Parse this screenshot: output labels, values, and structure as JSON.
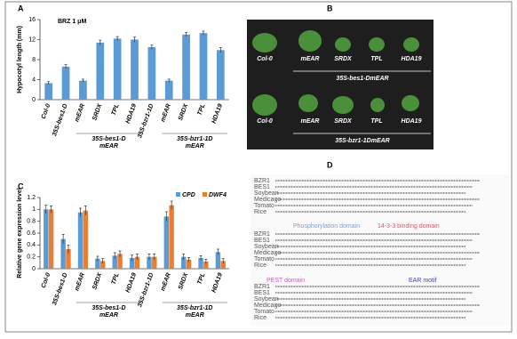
{
  "panel_labels": [
    "A",
    "B",
    "C",
    "D"
  ],
  "chart_data": [
    {
      "type": "bar",
      "title": "BRZ 1 μM",
      "y_label": "Hypocotyl length (mm)",
      "categories": [
        "Col-0",
        "35S-bes1-D",
        "mEAR",
        "SRDX",
        "TPL",
        "HDA19",
        "35S-bzr1-1D",
        "mEAR",
        "SRDX",
        "TPL",
        "HDA19"
      ],
      "values": [
        3.3,
        6.6,
        3.8,
        11.4,
        12.2,
        12.0,
        10.5,
        3.8,
        13.0,
        13.3,
        9.9
      ],
      "errors": [
        0.3,
        0.4,
        0.3,
        0.5,
        0.4,
        0.5,
        0.4,
        0.3,
        0.4,
        0.4,
        0.5
      ],
      "group_labels": [
        [
          "35S-bes1-D",
          "mEAR"
        ],
        [
          "35S-bzr1-1D",
          "mEAR"
        ]
      ],
      "color": "#5b9bd5",
      "ylim": [
        0,
        16
      ],
      "yticks": [
        0,
        4,
        8,
        12,
        16
      ]
    },
    {
      "type": "grouped-bar",
      "y_label": "Relative gene expression level",
      "categories": [
        "Col-0",
        "35S-bes1-D",
        "mEAR",
        "SRDX",
        "TPL",
        "HDA19",
        "35S-bzr1-1D",
        "mEAR",
        "SRDX",
        "TPL",
        "HDA19"
      ],
      "series": [
        {
          "name": "CPD",
          "color": "#5b9bd5",
          "values": [
            1.0,
            0.5,
            0.95,
            0.17,
            0.22,
            0.18,
            0.2,
            0.88,
            0.2,
            0.18,
            0.28
          ],
          "errors": [
            0.07,
            0.08,
            0.07,
            0.04,
            0.05,
            0.05,
            0.05,
            0.08,
            0.05,
            0.04,
            0.05
          ]
        },
        {
          "name": "DWF4",
          "color": "#ed7d31",
          "values": [
            1.0,
            0.33,
            0.98,
            0.13,
            0.25,
            0.2,
            0.2,
            1.07,
            0.15,
            0.12,
            0.13
          ],
          "errors": [
            0.06,
            0.07,
            0.08,
            0.04,
            0.05,
            0.05,
            0.05,
            0.07,
            0.04,
            0.04,
            0.04
          ]
        }
      ],
      "group_labels": [
        [
          "35S-bes1-D",
          "mEAR"
        ],
        [
          "35S-bzr1-1D",
          "mEAR"
        ]
      ],
      "ylim": [
        0,
        1.2
      ],
      "yticks": [
        0,
        0.2,
        0.4,
        0.6,
        0.8,
        1,
        1.2
      ]
    }
  ],
  "photo": {
    "rows": [
      {
        "labels": [
          "Col-0",
          "mEAR",
          "SRDX",
          "TPL",
          "HDA19"
        ],
        "caption": "35S-bes1-DmEAR"
      },
      {
        "labels": [
          "Col-0",
          "mEAR",
          "SRDX",
          "TPL",
          "HDA19"
        ],
        "caption": "35S-bzr1-1DmEAR"
      }
    ]
  },
  "alignment": {
    "species": [
      "BZR1",
      "BES1",
      "Soybean",
      "Medicago",
      "Tomato",
      "Rice"
    ],
    "domains": [
      "Phosphorylation domain",
      "14-3-3 binding domain",
      "PEST domain",
      "EAR motif"
    ]
  }
}
